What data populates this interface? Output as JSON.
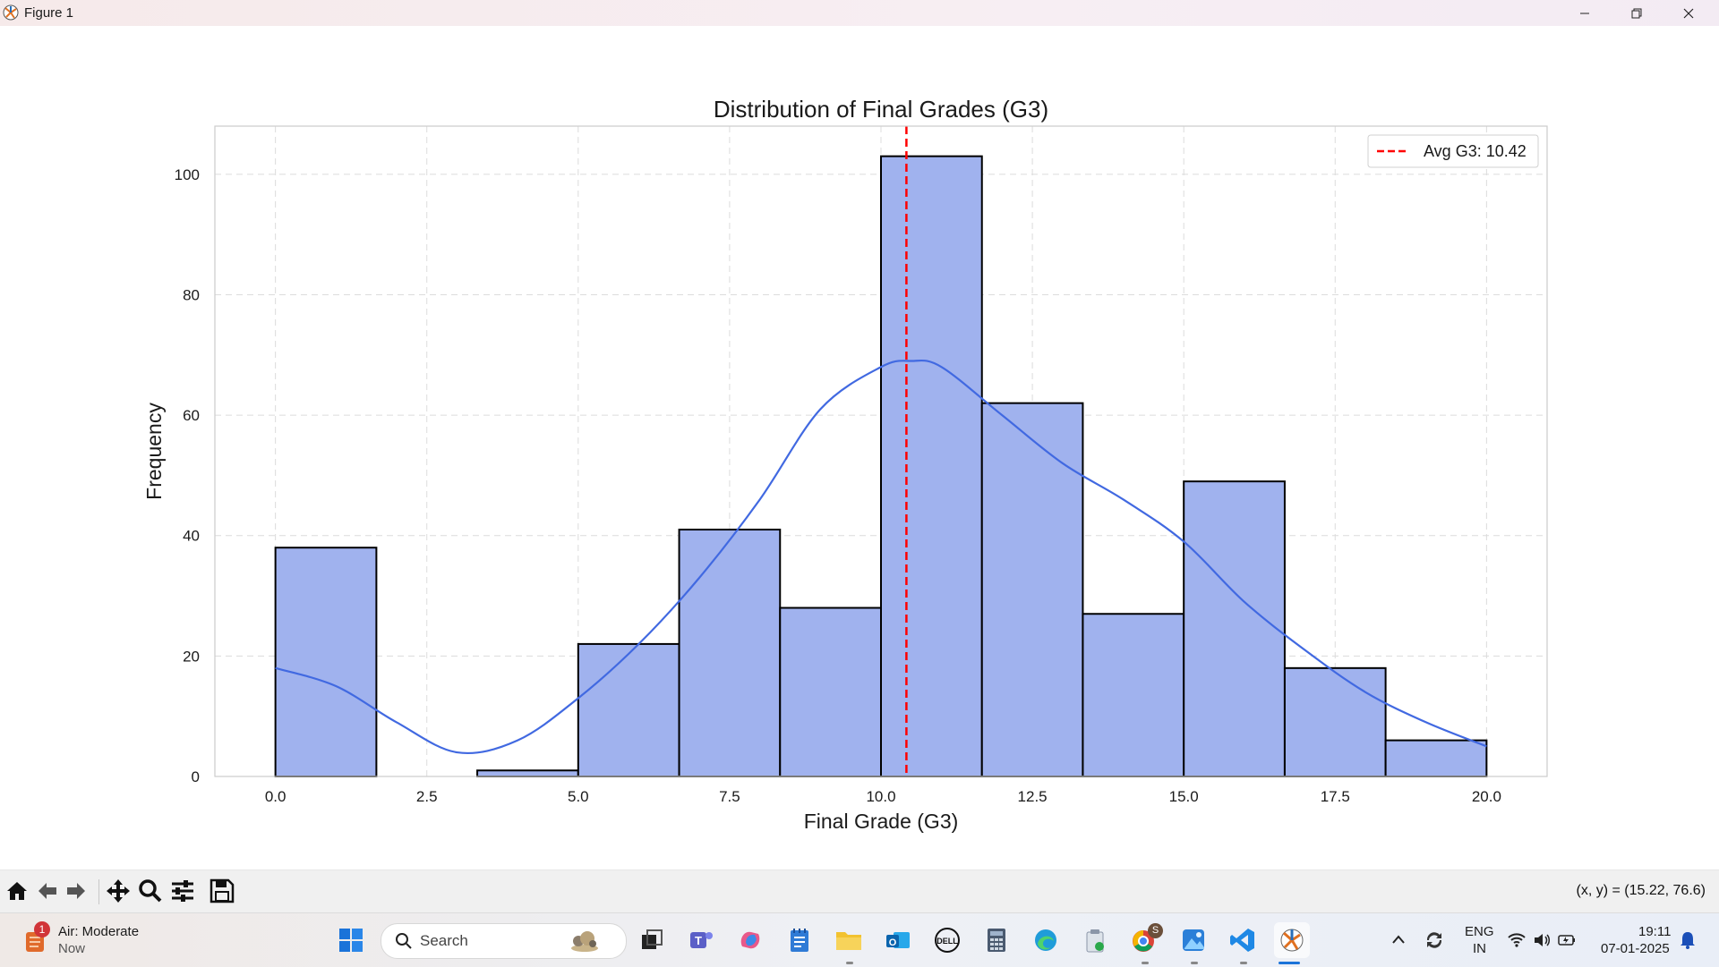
{
  "window": {
    "title": "Figure 1"
  },
  "chart_data": {
    "type": "bar",
    "title": "Distribution of Final Grades (G3)",
    "xlabel": "Final Grade (G3)",
    "ylabel": "Frequency",
    "bins": [
      {
        "start": 0.0,
        "end": 1.667,
        "count": 38
      },
      {
        "start": 1.667,
        "end": 3.333,
        "count": 0
      },
      {
        "start": 3.333,
        "end": 5.0,
        "count": 1
      },
      {
        "start": 5.0,
        "end": 6.667,
        "count": 22
      },
      {
        "start": 6.667,
        "end": 8.333,
        "count": 41
      },
      {
        "start": 8.333,
        "end": 10.0,
        "count": 28
      },
      {
        "start": 10.0,
        "end": 11.667,
        "count": 103
      },
      {
        "start": 11.667,
        "end": 13.333,
        "count": 62
      },
      {
        "start": 13.333,
        "end": 15.0,
        "count": 27
      },
      {
        "start": 15.0,
        "end": 16.667,
        "count": 49
      },
      {
        "start": 16.667,
        "end": 18.333,
        "count": 18
      },
      {
        "start": 18.333,
        "end": 20.0,
        "count": 6
      }
    ],
    "kde": {
      "x": [
        0,
        1,
        2,
        3,
        4,
        5,
        6,
        7,
        8,
        9,
        10,
        10.5,
        11,
        12,
        13,
        14,
        15,
        16,
        17,
        18,
        19,
        20
      ],
      "y": [
        18,
        15,
        9,
        4,
        6,
        13,
        22,
        33,
        46,
        61,
        68,
        69,
        68,
        60,
        52,
        46,
        39,
        29,
        21,
        14,
        9,
        5
      ]
    },
    "mean_line": {
      "value": 10.42,
      "label": "Avg G3: 10.42"
    },
    "xlim": [
      -1.0,
      21.0
    ],
    "ylim": [
      0,
      108
    ],
    "xticks": [
      "0.0",
      "2.5",
      "5.0",
      "7.5",
      "10.0",
      "12.5",
      "15.0",
      "17.5",
      "20.0"
    ],
    "xtick_values": [
      0,
      2.5,
      5,
      7.5,
      10,
      12.5,
      15,
      17.5,
      20
    ],
    "yticks": [
      "0",
      "20",
      "40",
      "60",
      "80",
      "100"
    ],
    "ytick_values": [
      0,
      20,
      40,
      60,
      80,
      100
    ],
    "grid": true,
    "legend_position": "top-right",
    "colors": {
      "bar": "#a0b2ee",
      "edge": "#000000",
      "kde": "#4169e1",
      "mean": "#ff0000",
      "grid": "#dcdcdc"
    }
  },
  "toolbar": {
    "buttons": [
      "home-icon",
      "back-icon",
      "forward-icon",
      "pan-icon",
      "zoom-icon",
      "configure-icon",
      "save-icon"
    ],
    "coords": "(x, y) = (15.22, 76.6)"
  },
  "taskbar": {
    "weather_badge": "1",
    "weather_title": "Air: Moderate",
    "weather_sub": "Now",
    "search_placeholder": "Search",
    "chrome_badge": "S",
    "lang_1": "ENG",
    "lang_2": "IN",
    "time": "19:11",
    "date": "07-01-2025"
  }
}
